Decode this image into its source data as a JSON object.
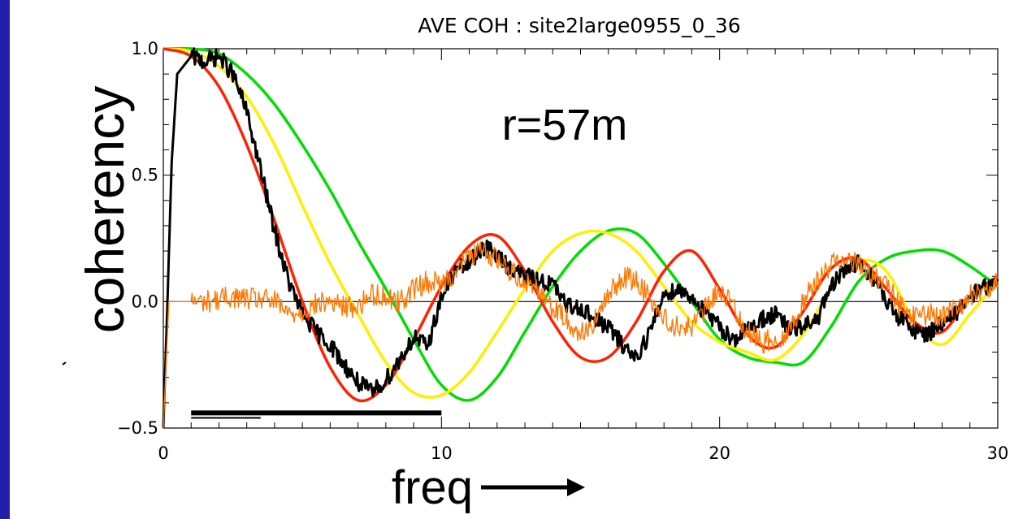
{
  "colors": {
    "background": "#1f1faa",
    "panel": "#ffffff"
  },
  "chart_data": {
    "type": "line",
    "title": "AVE COH : site2large0955_0_36",
    "xlabel": "freq",
    "ylabel": "coherency",
    "annotation": "r=57m",
    "xlim": [
      0,
      30
    ],
    "ylim": [
      -0.5,
      1.0
    ],
    "x_ticks": [
      {
        "value": 0,
        "label": "0"
      },
      {
        "value": 10,
        "label": "10"
      },
      {
        "value": 20,
        "label": "20"
      },
      {
        "value": 30,
        "label": "30"
      }
    ],
    "y_ticks": [
      {
        "value": -0.5,
        "label": "−0.5"
      },
      {
        "value": 0.0,
        "label": "0.0"
      },
      {
        "value": 0.5,
        "label": "0.5"
      },
      {
        "value": 1.0,
        "label": "1.0"
      }
    ],
    "zero_line": true,
    "bars": [
      {
        "x": [
          1.0,
          10.0
        ],
        "y": -0.44,
        "color": "#000000",
        "thickness": "thick"
      },
      {
        "x": [
          1.0,
          3.5
        ],
        "y": -0.46,
        "color": "#000000",
        "thickness": "thin"
      }
    ],
    "series": [
      {
        "color": "#00dd00",
        "style": "smooth",
        "points": [
          [
            0,
            1.0
          ],
          [
            1,
            1.0
          ],
          [
            2,
            0.98
          ],
          [
            3,
            0.9
          ],
          [
            4,
            0.78
          ],
          [
            5,
            0.62
          ],
          [
            6,
            0.44
          ],
          [
            7,
            0.24
          ],
          [
            8,
            0.05
          ],
          [
            9,
            -0.15
          ],
          [
            10,
            -0.33
          ],
          [
            11,
            -0.39
          ],
          [
            12,
            -0.3
          ],
          [
            13,
            -0.12
          ],
          [
            14,
            0.06
          ],
          [
            15,
            0.2
          ],
          [
            16,
            0.28
          ],
          [
            17,
            0.27
          ],
          [
            18,
            0.15
          ],
          [
            19,
            0.0
          ],
          [
            20,
            -0.15
          ],
          [
            21,
            -0.22
          ],
          [
            22,
            -0.24
          ],
          [
            23,
            -0.24
          ],
          [
            24,
            -0.1
          ],
          [
            25,
            0.08
          ],
          [
            26,
            0.17
          ],
          [
            27,
            0.2
          ],
          [
            28,
            0.2
          ],
          [
            29,
            0.14
          ],
          [
            30,
            0.06
          ]
        ]
      },
      {
        "color": "#ffee00",
        "style": "smooth",
        "points": [
          [
            0,
            1.0
          ],
          [
            1,
            0.99
          ],
          [
            2,
            0.93
          ],
          [
            3,
            0.81
          ],
          [
            4,
            0.62
          ],
          [
            5,
            0.38
          ],
          [
            6,
            0.15
          ],
          [
            7,
            -0.05
          ],
          [
            8,
            -0.24
          ],
          [
            9,
            -0.36
          ],
          [
            10,
            -0.37
          ],
          [
            11,
            -0.28
          ],
          [
            12,
            -0.12
          ],
          [
            13,
            0.05
          ],
          [
            14,
            0.2
          ],
          [
            15,
            0.27
          ],
          [
            16,
            0.27
          ],
          [
            17,
            0.2
          ],
          [
            18,
            0.06
          ],
          [
            19,
            -0.08
          ],
          [
            20,
            -0.16
          ],
          [
            21,
            -0.2
          ],
          [
            22,
            -0.23
          ],
          [
            23,
            -0.13
          ],
          [
            24,
            0.05
          ],
          [
            25,
            0.16
          ],
          [
            26,
            0.12
          ],
          [
            27,
            -0.08
          ],
          [
            28,
            -0.17
          ],
          [
            29,
            -0.05
          ],
          [
            30,
            0.08
          ]
        ]
      },
      {
        "color": "#ff2200",
        "style": "smooth",
        "points": [
          [
            0,
            1.0
          ],
          [
            1,
            0.97
          ],
          [
            2,
            0.85
          ],
          [
            3,
            0.62
          ],
          [
            4,
            0.32
          ],
          [
            5,
            0.0
          ],
          [
            6,
            -0.26
          ],
          [
            7,
            -0.39
          ],
          [
            8,
            -0.33
          ],
          [
            9,
            -0.15
          ],
          [
            10,
            0.06
          ],
          [
            11,
            0.22
          ],
          [
            12,
            0.26
          ],
          [
            13,
            0.12
          ],
          [
            14,
            -0.08
          ],
          [
            15,
            -0.22
          ],
          [
            16,
            -0.22
          ],
          [
            17,
            -0.08
          ],
          [
            18,
            0.12
          ],
          [
            19,
            0.2
          ],
          [
            20,
            0.05
          ],
          [
            21,
            -0.13
          ],
          [
            22,
            -0.18
          ],
          [
            23,
            -0.04
          ],
          [
            24,
            0.13
          ],
          [
            25,
            0.17
          ],
          [
            26,
            0.05
          ],
          [
            27,
            -0.08
          ],
          [
            28,
            -0.12
          ],
          [
            29,
            0.02
          ],
          [
            30,
            0.1
          ]
        ]
      },
      {
        "color": "#000000",
        "style": "noisy",
        "width": 3,
        "points": [
          [
            0,
            -0.5
          ],
          [
            0.15,
            0.0
          ],
          [
            0.3,
            0.55
          ],
          [
            0.5,
            0.9
          ],
          [
            1.0,
            0.97
          ],
          [
            1.5,
            0.95
          ],
          [
            2.0,
            0.97
          ],
          [
            2.5,
            0.9
          ],
          [
            3.0,
            0.75
          ],
          [
            3.5,
            0.52
          ],
          [
            4.0,
            0.28
          ],
          [
            4.5,
            0.08
          ],
          [
            5.0,
            -0.05
          ],
          [
            5.5,
            -0.12
          ],
          [
            6.0,
            -0.17
          ],
          [
            6.5,
            -0.25
          ],
          [
            7.0,
            -0.32
          ],
          [
            7.5,
            -0.36
          ],
          [
            8.0,
            -0.31
          ],
          [
            8.5,
            -0.23
          ],
          [
            9.0,
            -0.14
          ],
          [
            9.5,
            -0.18
          ],
          [
            10.0,
            0.02
          ],
          [
            10.5,
            0.12
          ],
          [
            11.0,
            0.15
          ],
          [
            11.5,
            0.22
          ],
          [
            12.0,
            0.18
          ],
          [
            12.5,
            0.13
          ],
          [
            13.0,
            0.1
          ],
          [
            13.5,
            0.08
          ],
          [
            14.0,
            0.07
          ],
          [
            14.5,
            -0.02
          ],
          [
            15.0,
            -0.02
          ],
          [
            15.5,
            -0.07
          ],
          [
            16.0,
            -0.1
          ],
          [
            16.5,
            -0.17
          ],
          [
            17.0,
            -0.22
          ],
          [
            17.5,
            -0.12
          ],
          [
            18.0,
            0.03
          ],
          [
            18.5,
            0.05
          ],
          [
            19.0,
            0.02
          ],
          [
            19.5,
            -0.05
          ],
          [
            20.0,
            -0.1
          ],
          [
            20.5,
            -0.15
          ],
          [
            21.0,
            -0.11
          ],
          [
            21.5,
            -0.07
          ],
          [
            22.0,
            -0.05
          ],
          [
            22.5,
            -0.11
          ],
          [
            23.0,
            -0.1
          ],
          [
            23.5,
            -0.07
          ],
          [
            24.0,
            0.05
          ],
          [
            24.5,
            0.13
          ],
          [
            25.0,
            0.15
          ],
          [
            25.5,
            0.1
          ],
          [
            26.0,
            0.0
          ],
          [
            26.5,
            -0.07
          ],
          [
            27.0,
            -0.11
          ],
          [
            27.5,
            -0.13
          ],
          [
            28.0,
            -0.08
          ],
          [
            28.5,
            -0.05
          ],
          [
            29.0,
            0.02
          ],
          [
            29.5,
            0.06
          ],
          [
            30.0,
            0.06
          ]
        ]
      },
      {
        "color": "#ff7700",
        "style": "noisy",
        "width": 1.4,
        "points": [
          [
            0,
            -0.5
          ],
          [
            0.2,
            0.0
          ],
          [
            0.5,
            0.0
          ],
          [
            1.5,
            0.0
          ],
          [
            2.5,
            0.02
          ],
          [
            3.0,
            0.01
          ],
          [
            3.5,
            0.01
          ],
          [
            4.0,
            0.0
          ],
          [
            4.5,
            -0.05
          ],
          [
            5.0,
            -0.04
          ],
          [
            5.5,
            -0.01
          ],
          [
            6.0,
            0.0
          ],
          [
            6.5,
            -0.02
          ],
          [
            7.0,
            -0.02
          ],
          [
            7.5,
            0.03
          ],
          [
            8.0,
            0.02
          ],
          [
            8.5,
            0.0
          ],
          [
            9.0,
            0.05
          ],
          [
            9.5,
            0.08
          ],
          [
            10.0,
            0.07
          ],
          [
            10.5,
            0.12
          ],
          [
            11.0,
            0.18
          ],
          [
            11.5,
            0.2
          ],
          [
            12.0,
            0.17
          ],
          [
            12.5,
            0.12
          ],
          [
            13.0,
            0.08
          ],
          [
            13.5,
            0.05
          ],
          [
            14.0,
            -0.02
          ],
          [
            14.5,
            -0.07
          ],
          [
            15.0,
            -0.13
          ],
          [
            15.5,
            -0.08
          ],
          [
            16.0,
            0.02
          ],
          [
            16.5,
            0.1
          ],
          [
            17.0,
            0.08
          ],
          [
            17.5,
            0.02
          ],
          [
            18.0,
            -0.07
          ],
          [
            18.5,
            -0.1
          ],
          [
            19.0,
            -0.1
          ],
          [
            19.5,
            -0.03
          ],
          [
            20.0,
            0.05
          ],
          [
            20.5,
            -0.02
          ],
          [
            21.0,
            -0.12
          ],
          [
            21.5,
            -0.16
          ],
          [
            22.0,
            -0.15
          ],
          [
            22.5,
            -0.12
          ],
          [
            23.0,
            0.0
          ],
          [
            23.5,
            0.08
          ],
          [
            24.0,
            0.15
          ],
          [
            24.5,
            0.18
          ],
          [
            25.0,
            0.15
          ],
          [
            25.5,
            0.1
          ],
          [
            26.0,
            0.06
          ],
          [
            26.5,
            -0.02
          ],
          [
            27.0,
            -0.06
          ],
          [
            27.5,
            -0.05
          ],
          [
            28.0,
            -0.06
          ],
          [
            28.5,
            -0.03
          ],
          [
            29.0,
            0.02
          ],
          [
            29.5,
            0.05
          ],
          [
            30.0,
            0.08
          ]
        ]
      }
    ]
  }
}
